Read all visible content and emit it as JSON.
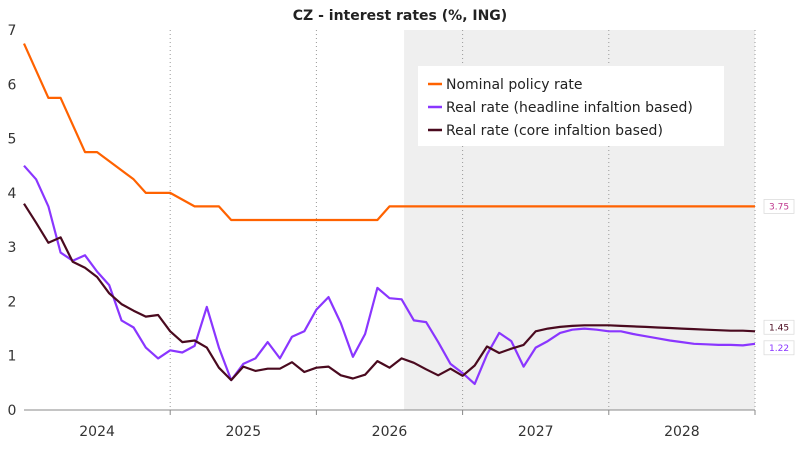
{
  "chart_data": {
    "type": "line",
    "title": "CZ - interest rates (%, ING)",
    "xlabel": "",
    "ylabel": "",
    "ylim": [
      0,
      7
    ],
    "yticks": [
      "0",
      "1",
      "2",
      "3",
      "4",
      "5",
      "6",
      "7"
    ],
    "xlim": [
      2023.5,
      2028.5
    ],
    "year_labels": [
      "2024",
      "2025",
      "2026",
      "2027",
      "2028"
    ],
    "forecast_start": 2026.1,
    "legend": "top-right inside",
    "series": [
      {
        "name": "Nominal policy rate",
        "color": "#ff6200",
        "x": [
          2023.5,
          2023.667,
          2023.75,
          2023.917,
          2024.0,
          2024.25,
          2024.333,
          2024.5,
          2024.667,
          2024.75,
          2024.833,
          2024.917,
          2025.0,
          2025.083,
          2025.25,
          2025.5,
          2025.75,
          2025.917,
          2026.0,
          2026.083,
          2026.5,
          2027.0,
          2027.5,
          2028.0,
          2028.5
        ],
        "y": [
          6.75,
          5.75,
          5.75,
          4.75,
          4.75,
          4.25,
          4.0,
          4.0,
          3.75,
          3.75,
          3.75,
          3.5,
          3.5,
          3.5,
          3.5,
          3.5,
          3.5,
          3.5,
          3.75,
          3.75,
          3.75,
          3.75,
          3.75,
          3.75,
          3.75
        ]
      },
      {
        "name": "Real rate (headline infaltion based)",
        "color": "#8a36ff",
        "x": [
          2023.5,
          2023.583,
          2023.667,
          2023.75,
          2023.833,
          2023.917,
          2024.0,
          2024.083,
          2024.167,
          2024.25,
          2024.333,
          2024.417,
          2024.5,
          2024.583,
          2024.667,
          2024.75,
          2024.833,
          2024.917,
          2025.0,
          2025.083,
          2025.167,
          2025.25,
          2025.333,
          2025.417,
          2025.5,
          2025.583,
          2025.667,
          2025.75,
          2025.833,
          2025.917,
          2026.0,
          2026.083,
          2026.167,
          2026.25,
          2026.333,
          2026.417,
          2026.5,
          2026.583,
          2026.667,
          2026.75,
          2026.833,
          2026.917,
          2027.0,
          2027.083,
          2027.167,
          2027.25,
          2027.333,
          2027.417,
          2027.5,
          2027.583,
          2027.667,
          2027.75,
          2027.833,
          2027.917,
          2028.0,
          2028.083,
          2028.167,
          2028.25,
          2028.333,
          2028.417,
          2028.5
        ],
        "y": [
          4.5,
          4.25,
          3.75,
          2.9,
          2.75,
          2.85,
          2.55,
          2.3,
          1.65,
          1.52,
          1.15,
          0.95,
          1.1,
          1.06,
          1.18,
          1.9,
          1.15,
          0.55,
          0.85,
          0.95,
          1.25,
          0.95,
          1.35,
          1.45,
          1.85,
          2.08,
          1.6,
          0.98,
          1.4,
          2.25,
          2.06,
          2.04,
          1.65,
          1.62,
          1.25,
          0.85,
          0.68,
          0.48,
          1.02,
          1.42,
          1.27,
          0.8,
          1.15,
          1.27,
          1.42,
          1.48,
          1.5,
          1.48,
          1.45,
          1.45,
          1.4,
          1.36,
          1.32,
          1.28,
          1.25,
          1.22,
          1.21,
          1.2,
          1.2,
          1.19,
          1.22
        ]
      },
      {
        "name": "Real rate (core infaltion based)",
        "color": "#4a0a1f",
        "x": [
          2023.5,
          2023.583,
          2023.667,
          2023.75,
          2023.833,
          2023.917,
          2024.0,
          2024.083,
          2024.167,
          2024.25,
          2024.333,
          2024.417,
          2024.5,
          2024.583,
          2024.667,
          2024.75,
          2024.833,
          2024.917,
          2025.0,
          2025.083,
          2025.167,
          2025.25,
          2025.333,
          2025.417,
          2025.5,
          2025.583,
          2025.667,
          2025.75,
          2025.833,
          2025.917,
          2026.0,
          2026.083,
          2026.167,
          2026.25,
          2026.333,
          2026.417,
          2026.5,
          2026.583,
          2026.667,
          2026.75,
          2026.833,
          2026.917,
          2027.0,
          2027.083,
          2027.167,
          2027.25,
          2027.333,
          2027.417,
          2027.5,
          2027.583,
          2027.667,
          2027.75,
          2027.833,
          2027.917,
          2028.0,
          2028.083,
          2028.167,
          2028.25,
          2028.333,
          2028.417,
          2028.5
        ],
        "y": [
          3.8,
          3.45,
          3.08,
          3.18,
          2.73,
          2.62,
          2.45,
          2.15,
          1.95,
          1.83,
          1.72,
          1.75,
          1.45,
          1.25,
          1.28,
          1.15,
          0.78,
          0.55,
          0.8,
          0.72,
          0.76,
          0.76,
          0.88,
          0.7,
          0.78,
          0.8,
          0.64,
          0.58,
          0.65,
          0.9,
          0.78,
          0.95,
          0.87,
          0.75,
          0.64,
          0.76,
          0.63,
          0.82,
          1.17,
          1.05,
          1.13,
          1.2,
          1.45,
          1.5,
          1.53,
          1.55,
          1.56,
          1.56,
          1.56,
          1.55,
          1.54,
          1.53,
          1.52,
          1.51,
          1.5,
          1.49,
          1.48,
          1.47,
          1.46,
          1.46,
          1.45
        ]
      }
    ],
    "end_labels": [
      {
        "text": "3.75",
        "value": 3.75,
        "color": "#c0398f"
      },
      {
        "text": "1.45",
        "value": 1.45,
        "color": "#4a0a1f"
      },
      {
        "text": "1.22",
        "value": 1.22,
        "color": "#8a36ff"
      }
    ]
  }
}
